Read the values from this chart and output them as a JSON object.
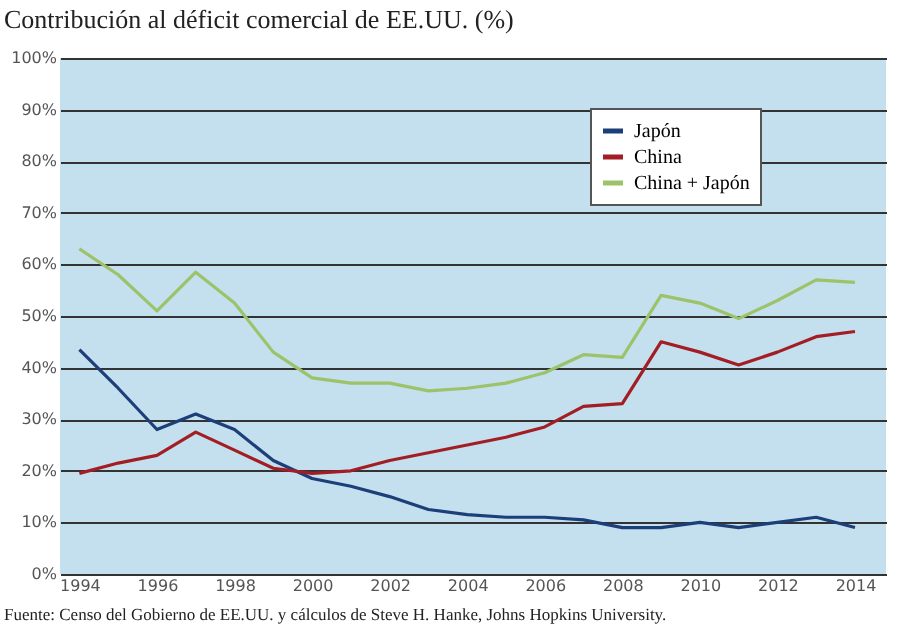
{
  "chart_data": {
    "type": "line",
    "title": "Contribución al déficit comercial de EE.UU. (%)",
    "x": [
      1994,
      1995,
      1996,
      1997,
      1998,
      1999,
      2000,
      2001,
      2002,
      2003,
      2004,
      2005,
      2006,
      2007,
      2008,
      2009,
      2010,
      2011,
      2012,
      2013,
      2014
    ],
    "series": [
      {
        "name": "Japón",
        "color": "#1c3f7a",
        "values": [
          43.5,
          36,
          28,
          31,
          28,
          22,
          18.5,
          17,
          15,
          12.5,
          11.5,
          11,
          11,
          10.5,
          9,
          9,
          10,
          9,
          10,
          11,
          9
        ]
      },
      {
        "name": "China",
        "color": "#a31d24",
        "values": [
          19.5,
          21.5,
          23,
          27.5,
          24,
          20.5,
          19.5,
          20,
          22,
          23.5,
          25,
          26.5,
          28.5,
          32.5,
          33,
          45,
          43,
          40.5,
          43,
          46,
          47
        ]
      },
      {
        "name": "China + Japón",
        "color": "#9cc26a",
        "values": [
          63,
          58,
          51,
          58.5,
          52.5,
          43,
          38,
          37,
          37,
          35.5,
          36,
          37,
          39,
          42.5,
          42,
          54,
          52.5,
          49.5,
          53,
          57,
          56.5
        ]
      }
    ],
    "xlim": [
      1993.5,
      2014.8
    ],
    "xticks": [
      1994,
      1996,
      1998,
      2000,
      2002,
      2004,
      2006,
      2008,
      2010,
      2012,
      2014
    ],
    "ylim": [
      0,
      100
    ],
    "yticks": [
      {
        "value": 0,
        "label": "0%"
      },
      {
        "value": 10,
        "label": "10%"
      },
      {
        "value": 20,
        "label": "20%"
      },
      {
        "value": 30,
        "label": "30%"
      },
      {
        "value": 40,
        "label": "40%"
      },
      {
        "value": 50,
        "label": "50%"
      },
      {
        "value": 60,
        "label": "60%"
      },
      {
        "value": 70,
        "label": "70%"
      },
      {
        "value": 80,
        "label": "80%"
      },
      {
        "value": 90,
        "label": "90%"
      },
      {
        "value": 100,
        "label": "100%"
      }
    ],
    "grid": "y",
    "legend": "top right",
    "annotations": [
      "Fuente: Censo del Gobierno de EE.UU. y cálculos de Steve H. Hanke, Johns Hopkins University."
    ]
  }
}
